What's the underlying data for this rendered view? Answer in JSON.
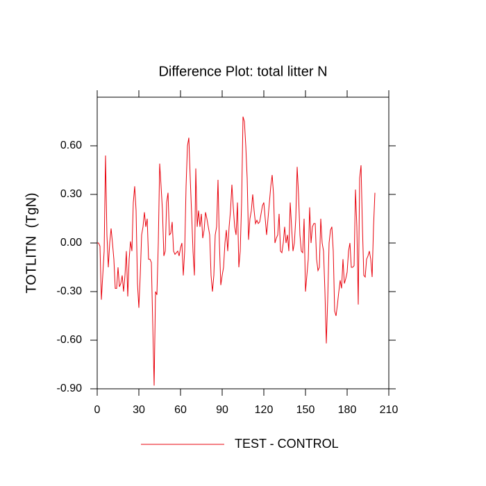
{
  "chart_data": {
    "type": "line",
    "title": "Difference Plot: total litter N",
    "y_label": "TOTLITN  (TgN)",
    "xlim": [
      0,
      210
    ],
    "xticks": [
      0,
      30,
      60,
      90,
      120,
      150,
      180,
      210
    ],
    "ylim": [
      -0.9,
      0.9
    ],
    "yticks": [
      {
        "value": -0.9,
        "label": "-0.90"
      },
      {
        "value": -0.6,
        "label": "-0.60"
      },
      {
        "value": -0.3,
        "label": "-0.30"
      },
      {
        "value": 0,
        "label": "0.00"
      },
      {
        "value": 0.3,
        "label": "0.30"
      },
      {
        "value": 0.6,
        "label": "0.60"
      }
    ],
    "x": [
      0,
      1,
      2,
      3,
      4,
      5,
      6,
      7,
      8,
      9,
      10,
      11,
      12,
      13,
      14,
      15,
      16,
      17,
      18,
      19,
      20,
      21,
      22,
      23,
      24,
      25,
      26,
      27,
      28,
      29,
      30,
      31,
      32,
      33,
      34,
      35,
      36,
      37,
      38,
      39,
      40,
      41,
      42,
      43,
      44,
      45,
      46,
      47,
      48,
      49,
      50,
      51,
      52,
      53,
      54,
      55,
      56,
      57,
      58,
      59,
      60,
      61,
      62,
      63,
      64,
      65,
      66,
      67,
      68,
      69,
      70,
      71,
      72,
      73,
      74,
      75,
      76,
      77,
      78,
      79,
      80,
      81,
      82,
      83,
      84,
      85,
      86,
      87,
      88,
      89,
      90,
      91,
      92,
      93,
      94,
      95,
      96,
      97,
      98,
      99,
      100,
      101,
      102,
      103,
      104,
      105,
      106,
      107,
      108,
      109,
      110,
      111,
      112,
      113,
      114,
      115,
      116,
      117,
      118,
      119,
      120,
      121,
      122,
      123,
      124,
      125,
      126,
      127,
      128,
      129,
      130,
      131,
      132,
      133,
      134,
      135,
      136,
      137,
      138,
      139,
      140,
      141,
      142,
      143,
      144,
      145,
      146,
      147,
      148,
      149,
      150,
      151,
      152,
      153,
      154,
      155,
      156,
      157,
      158,
      159,
      160,
      161,
      162,
      163,
      164,
      165,
      166,
      167,
      168,
      169,
      170,
      171,
      172,
      173,
      174,
      175,
      176,
      177,
      178,
      179,
      180,
      181,
      182,
      183,
      184,
      185,
      186,
      187,
      188,
      189,
      190,
      191,
      192,
      193,
      194,
      195,
      196,
      197,
      198,
      199,
      200
    ],
    "series": [
      {
        "name": "TEST - CONTROL",
        "color": "#e8000b",
        "values": [
          0.0,
          0.0,
          -0.02,
          -0.35,
          -0.2,
          -0.05,
          0.54,
          0.05,
          -0.15,
          0.0,
          0.09,
          0.0,
          -0.1,
          -0.28,
          -0.28,
          -0.15,
          -0.27,
          -0.25,
          -0.2,
          -0.3,
          -0.2,
          -0.05,
          -0.33,
          -0.1,
          0.01,
          -0.05,
          0.25,
          0.35,
          0.2,
          -0.25,
          -0.4,
          -0.2,
          0.05,
          0.1,
          0.19,
          0.1,
          0.15,
          -0.1,
          -0.1,
          -0.12,
          -0.5,
          -0.88,
          -0.3,
          -0.32,
          0.0,
          0.49,
          0.35,
          0.2,
          -0.08,
          -0.05,
          0.25,
          0.31,
          0.05,
          0.06,
          0.13,
          -0.05,
          -0.07,
          -0.06,
          -0.05,
          -0.08,
          -0.03,
          0.0,
          -0.2,
          -0.05,
          0.35,
          0.6,
          0.65,
          0.4,
          0.18,
          -0.05,
          -0.2,
          0.46,
          0.1,
          0.2,
          0.1,
          0.18,
          0.03,
          0.08,
          0.19,
          0.15,
          0.1,
          0.05,
          -0.2,
          -0.3,
          -0.2,
          0.05,
          0.1,
          0.39,
          0.0,
          -0.26,
          -0.2,
          -0.15,
          0.0,
          0.08,
          -0.05,
          0.1,
          0.2,
          0.36,
          0.22,
          0.1,
          0.05,
          0.25,
          -0.15,
          -0.05,
          0.25,
          0.78,
          0.75,
          0.6,
          0.4,
          0.02,
          0.15,
          0.2,
          0.3,
          0.2,
          0.12,
          0.14,
          0.12,
          0.13,
          0.18,
          0.23,
          0.25,
          0.15,
          0.05,
          0.15,
          0.25,
          0.35,
          0.42,
          0.3,
          0.0,
          0.03,
          0.05,
          0.18,
          -0.05,
          -0.06,
          0.0,
          0.1,
          0.0,
          0.05,
          -0.05,
          0.25,
          0.1,
          -0.05,
          0.0,
          0.15,
          0.47,
          0.3,
          0.05,
          -0.05,
          -0.06,
          0.15,
          -0.3,
          -0.2,
          -0.1,
          0.22,
          0.0,
          0.1,
          0.12,
          0.12,
          -0.1,
          -0.17,
          -0.15,
          0.15,
          0.0,
          -0.05,
          -0.3,
          -0.62,
          -0.35,
          0.0,
          0.08,
          0.1,
          -0.05,
          -0.42,
          -0.45,
          -0.38,
          -0.3,
          -0.23,
          -0.28,
          -0.1,
          -0.25,
          -0.22,
          -0.18,
          -0.05,
          0.0,
          -0.15,
          -0.15,
          -0.14,
          0.33,
          0.1,
          -0.38,
          0.4,
          0.48,
          0.1,
          -0.2,
          -0.21,
          -0.1,
          -0.08,
          -0.05,
          -0.1,
          -0.21,
          0.1,
          0.31
        ]
      }
    ]
  }
}
